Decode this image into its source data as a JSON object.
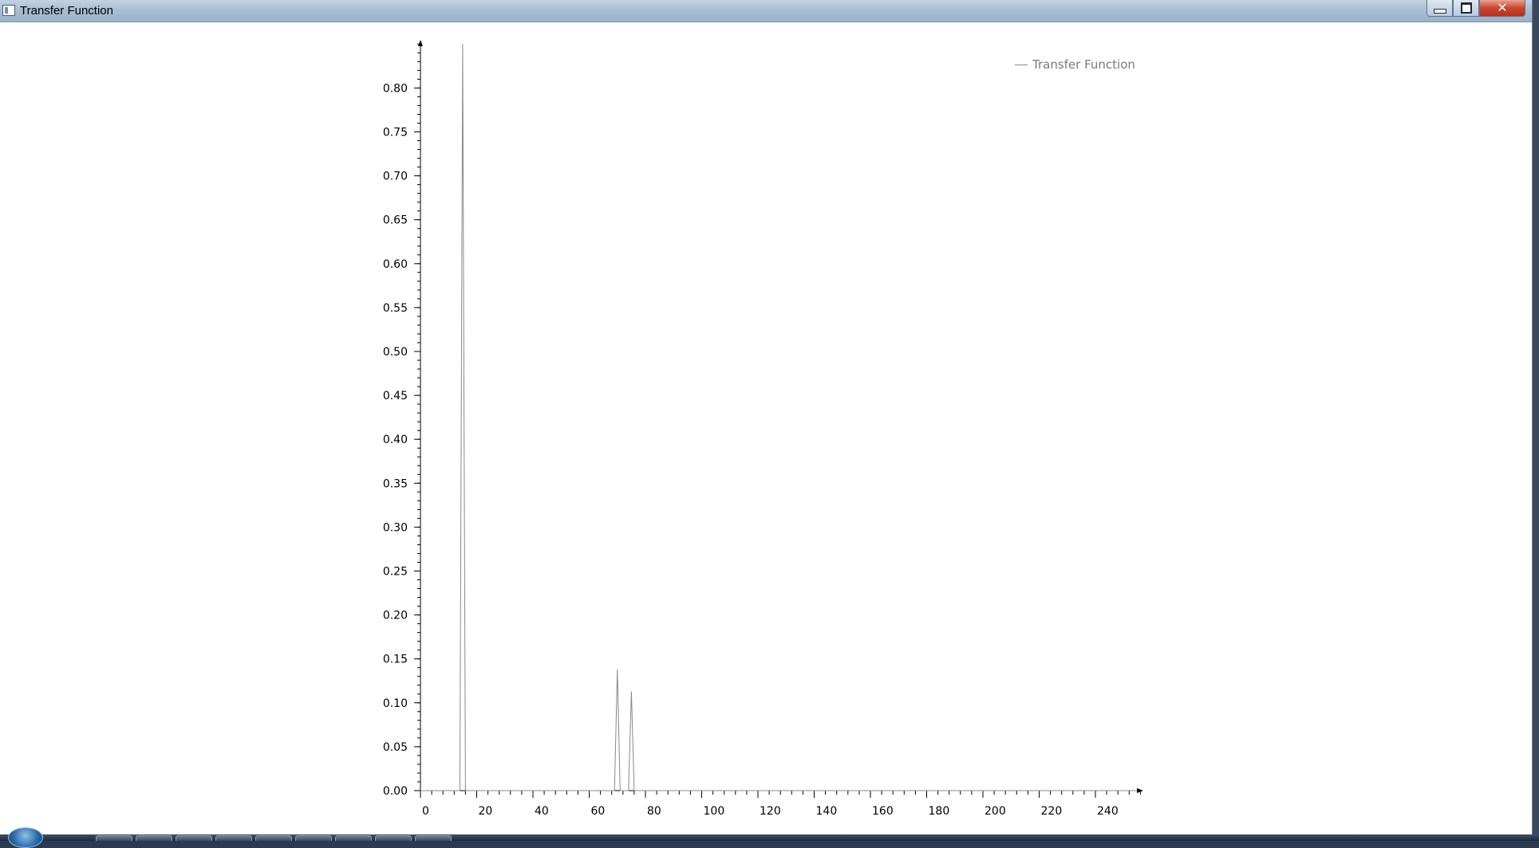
{
  "window": {
    "title": "Transfer Function",
    "controls": {
      "minimize_icon": "minimize-icon",
      "maximize_icon": "maximize-icon",
      "close_icon": "close-icon",
      "close_glyph": "✕"
    }
  },
  "colors": {
    "series": "#888888",
    "axis": "#000000",
    "legend_text": "#7a7a7a",
    "close_button": "#c9452e"
  },
  "chart_data": {
    "type": "line",
    "title": "",
    "xlabel": "",
    "ylabel": "",
    "xlim": [
      0,
      256
    ],
    "ylim": [
      0,
      0.85
    ],
    "x_ticks": [
      0,
      20,
      40,
      60,
      80,
      100,
      120,
      140,
      160,
      180,
      200,
      220,
      240
    ],
    "y_ticks": [
      "0.00",
      "0.05",
      "0.10",
      "0.15",
      "0.20",
      "0.25",
      "0.30",
      "0.35",
      "0.40",
      "0.45",
      "0.50",
      "0.55",
      "0.60",
      "0.65",
      "0.70",
      "0.75",
      "0.80"
    ],
    "legend": {
      "position": "top-right",
      "entries": [
        "Transfer Function"
      ]
    },
    "grid": false,
    "series": [
      {
        "name": "Transfer Function",
        "color": "#888888",
        "points": [
          [
            0,
            0
          ],
          [
            14,
            0
          ],
          [
            15,
            0.85
          ],
          [
            16,
            0
          ],
          [
            69,
            0
          ],
          [
            70,
            0.138
          ],
          [
            71,
            0
          ],
          [
            74,
            0
          ],
          [
            75,
            0.113
          ],
          [
            76,
            0
          ],
          [
            255,
            0
          ]
        ]
      }
    ]
  },
  "taskbar": {
    "start_icon": "windows-start-icon",
    "button_count": 9
  }
}
